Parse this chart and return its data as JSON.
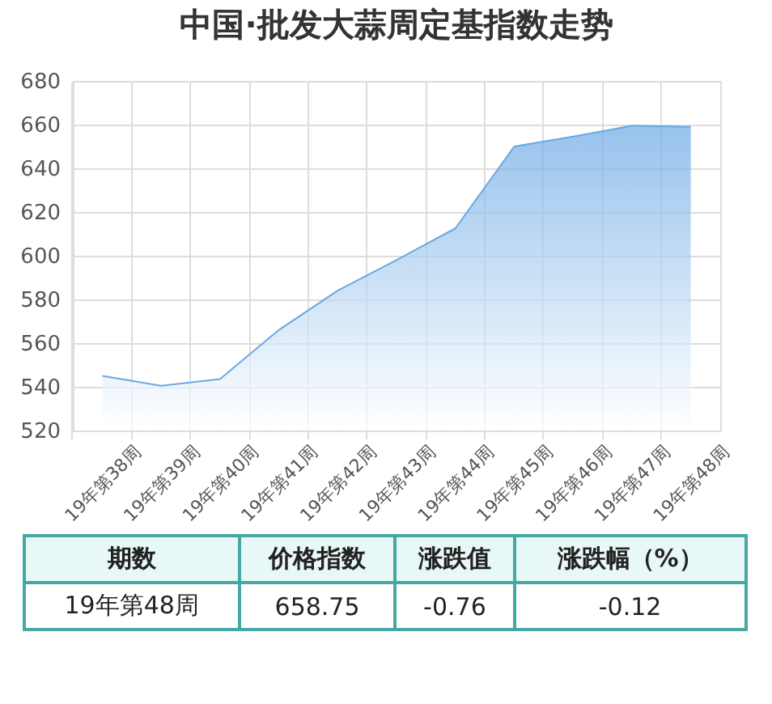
{
  "chart_data": {
    "type": "area",
    "title": "中国·批发大蒜周定基指数走势",
    "categories": [
      "19年第38周",
      "19年第39周",
      "19年第40周",
      "19年第41周",
      "19年第42周",
      "19年第43周",
      "19年第44周",
      "19年第45周",
      "19年第46周",
      "19年第47周",
      "19年第48周"
    ],
    "series": [
      {
        "color": "#6aa8e4",
        "values": [
          545,
          540.5,
          543.5,
          566,
          584,
          598,
          612.5,
          650,
          654.5,
          659.5,
          659
        ]
      }
    ],
    "ylim": [
      520,
      680
    ],
    "yticks": [
      520,
      540,
      560,
      580,
      600,
      620,
      640,
      660,
      680
    ],
    "grid": true,
    "marker": "none",
    "annotations": [
      "期数",
      "价格指数",
      "涨跌值",
      "涨跌幅（%）",
      "19年第48周",
      "658.75",
      "-0.76",
      "-0.12"
    ]
  }
}
